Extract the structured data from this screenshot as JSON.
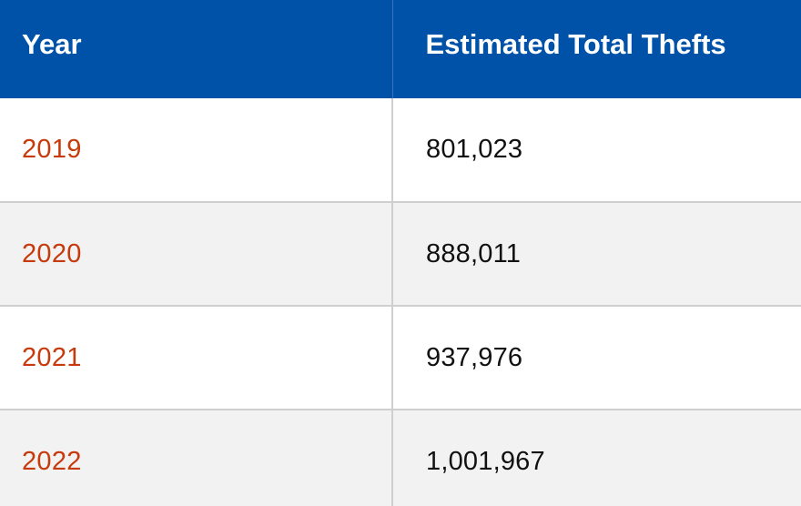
{
  "table": {
    "headers": {
      "year": "Year",
      "thefts": "Estimated Total Thefts"
    },
    "rows": [
      {
        "year": "2019",
        "thefts": "801,023"
      },
      {
        "year": "2020",
        "thefts": "888,011"
      },
      {
        "year": "2021",
        "thefts": "937,976"
      },
      {
        "year": "2022",
        "thefts": "1,001,967"
      }
    ]
  },
  "colors": {
    "header_bg": "#0052a8",
    "header_text": "#ffffff",
    "year_text": "#c73a0c",
    "stripe_bg": "#f2f2f2",
    "grid_line": "#cfcfcf"
  }
}
